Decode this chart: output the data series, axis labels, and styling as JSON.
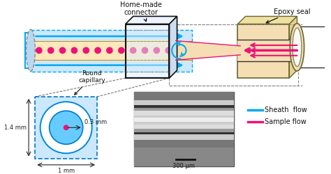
{
  "bg_color": "#ffffff",
  "sheath_color": "#00aaee",
  "sample_color": "#ee1177",
  "epoxy_color": "#f5deb3",
  "annotations": {
    "home_made": "Home-made\nconnector",
    "epoxy_seal": "Epoxy seal",
    "round_cap": "Round\ncapillary",
    "dim_03": "0.3 mm",
    "dim_14": "1.4 mm",
    "dim_1": "1 mm",
    "sheath": "Sheath  flow",
    "sample": "Sample flow",
    "scale": "300 μm"
  },
  "layout": {
    "fig_w": 4.74,
    "fig_h": 2.5,
    "dpi": 100
  }
}
